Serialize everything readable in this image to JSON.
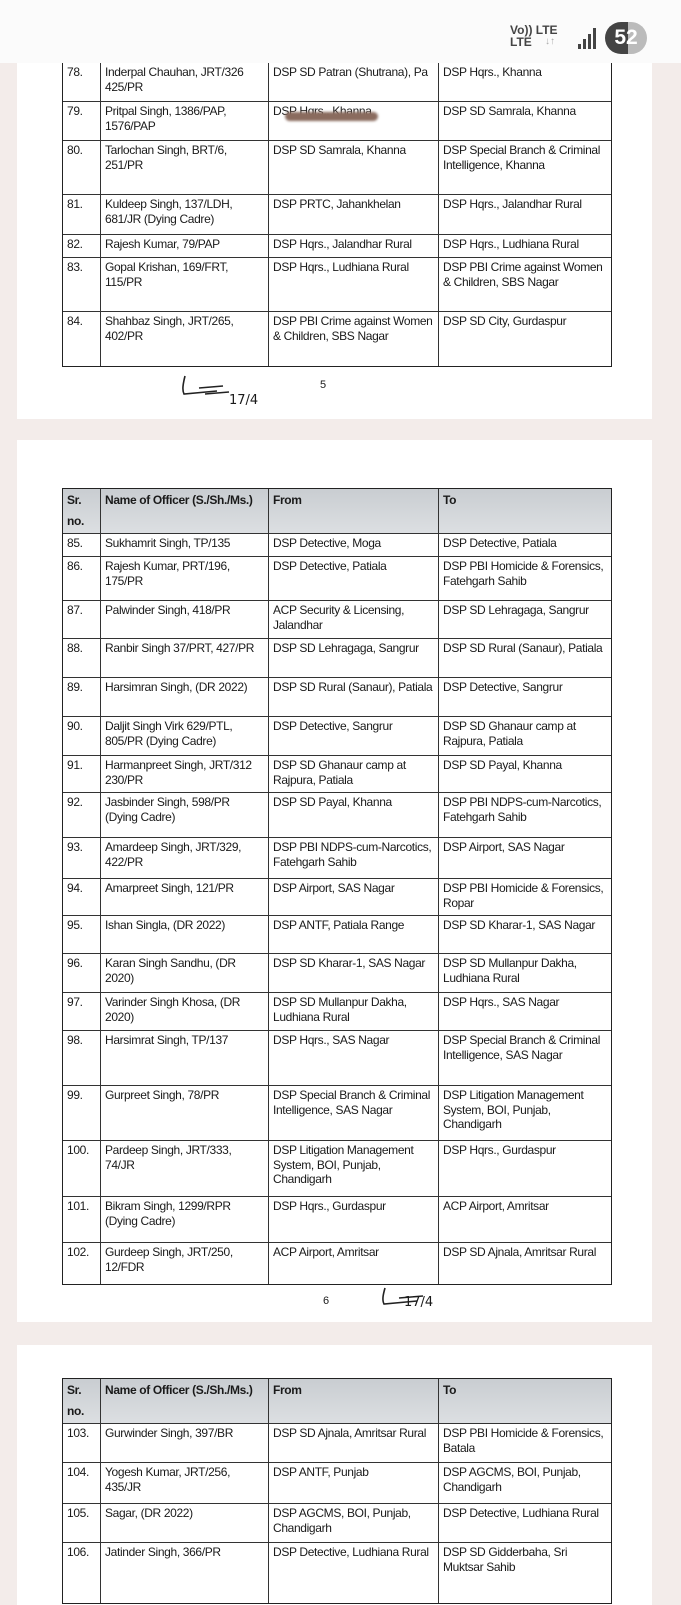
{
  "status_bar": {
    "network_top": "Vo)) LTE",
    "network_bottom": "LTE",
    "arrows": "↓↑",
    "battery": "52"
  },
  "header": {
    "sr": "Sr. no.",
    "name": "Name of Officer (S./Sh./Ms.)",
    "from": "From",
    "to": "To"
  },
  "pages": [
    {
      "page_number": "5",
      "signature_date": "17/4",
      "show_header": false,
      "rows": [
        {
          "sr": "78.",
          "name": "Inderpal Chauhan, JRT/326 425/PR",
          "from": "DSP SD Patran (Shutrana), Pa",
          "to": "DSP Hqrs., Khanna"
        },
        {
          "sr": "79.",
          "name": "Pritpal Singh, 1386/PAP, 1576/PAP",
          "from": "DSP Hqrs., Khanna",
          "to": "DSP SD Samrala, Khanna"
        },
        {
          "sr": "80.",
          "name": "Tarlochan Singh, BRT/6, 251/PR",
          "from": "DSP SD Samrala, Khanna",
          "to": "DSP Special Branch & Criminal Intelligence, Khanna"
        },
        {
          "sr": "81.",
          "name": "Kuldeep Singh, 137/LDH, 681/JR (Dying Cadre)",
          "from": "DSP PRTC, Jahankhelan",
          "to": "DSP Hqrs., Jalandhar Rural"
        },
        {
          "sr": "82.",
          "name": "Rajesh Kumar, 79/PAP",
          "from": "DSP Hqrs., Jalandhar Rural",
          "to": "DSP Hqrs., Ludhiana Rural"
        },
        {
          "sr": "83.",
          "name": "Gopal Krishan, 169/FRT, 115/PR",
          "from": "DSP Hqrs., Ludhiana Rural",
          "to": "DSP PBI Crime against Women & Children, SBS Nagar"
        },
        {
          "sr": "84.",
          "name": "Shahbaz Singh, JRT/265, 402/PR",
          "from": "DSP PBI Crime against Women & Children, SBS Nagar",
          "to": "DSP SD City, Gurdaspur"
        }
      ]
    },
    {
      "page_number": "6",
      "signature_date": "17/4",
      "show_header": true,
      "rows": [
        {
          "sr": "85.",
          "name": "Sukhamrit Singh, TP/135",
          "from": "DSP Detective, Moga",
          "to": "DSP Detective, Patiala"
        },
        {
          "sr": "86.",
          "name": "Rajesh Kumar, PRT/196, 175/PR",
          "from": "DSP Detective, Patiala",
          "to": "DSP PBI Homicide & Forensics, Fatehgarh Sahib"
        },
        {
          "sr": "87.",
          "name": "Palwinder Singh, 418/PR",
          "from": "ACP Security & Licensing, Jalandhar",
          "to": "DSP SD Lehragaga, Sangrur"
        },
        {
          "sr": "88.",
          "name": "Ranbir Singh 37/PRT, 427/PR",
          "from": "DSP SD Lehragaga, Sangrur",
          "to": "DSP SD Rural (Sanaur), Patiala"
        },
        {
          "sr": "89.",
          "name": "Harsimran Singh, (DR 2022)",
          "from": "DSP SD Rural (Sanaur), Patiala",
          "to": "DSP Detective, Sangrur"
        },
        {
          "sr": "90.",
          "name": "Daljit Singh Virk 629/PTL, 805/PR (Dying Cadre)",
          "from": "DSP Detective, Sangrur",
          "to": "DSP SD Ghanaur camp at Rajpura, Patiala"
        },
        {
          "sr": "91.",
          "name": "Harmanpreet Singh, JRT/312 230/PR",
          "from": "DSP SD Ghanaur camp at Rajpura, Patiala",
          "to": "DSP SD Payal, Khanna"
        },
        {
          "sr": "92.",
          "name": "Jasbinder Singh, 598/PR (Dying Cadre)",
          "from": "DSP SD Payal, Khanna",
          "to": "DSP PBI NDPS-cum-Narcotics, Fatehgarh Sahib"
        },
        {
          "sr": "93.",
          "name": "Amardeep Singh, JRT/329, 422/PR",
          "from": "DSP PBI NDPS-cum-Narcotics, Fatehgarh Sahib",
          "to": "DSP Airport, SAS Nagar"
        },
        {
          "sr": "94.",
          "name": "Amarpreet Singh, 121/PR",
          "from": "DSP Airport, SAS Nagar",
          "to": "DSP PBI Homicide & Forensics, Ropar"
        },
        {
          "sr": "95.",
          "name": "Ishan Singla, (DR 2022)",
          "from": "DSP ANTF, Patiala Range",
          "to": "DSP SD Kharar-1, SAS Nagar"
        },
        {
          "sr": "96.",
          "name": "Karan Singh Sandhu, (DR 2020)",
          "from": "DSP SD Kharar-1, SAS Nagar",
          "to": "DSP SD Mullanpur Dakha, Ludhiana Rural"
        },
        {
          "sr": "97.",
          "name": "Varinder Singh Khosa, (DR 2020)",
          "from": "DSP SD Mullanpur Dakha, Ludhiana Rural",
          "to": "DSP Hqrs., SAS Nagar"
        },
        {
          "sr": "98.",
          "name": "Harsimrat Singh, TP/137",
          "from": "DSP Hqrs., SAS Nagar",
          "to": "DSP Special Branch & Criminal Intelligence, SAS Nagar"
        },
        {
          "sr": "99.",
          "name": "Gurpreet Singh, 78/PR",
          "from": "DSP Special Branch & Criminal Intelligence, SAS Nagar",
          "to": "DSP Litigation Management System, BOI, Punjab, Chandigarh"
        },
        {
          "sr": "100.",
          "name": "Pardeep Singh, JRT/333, 74/JR",
          "from": "DSP Litigation Management System, BOI, Punjab, Chandigarh",
          "to": "DSP Hqrs., Gurdaspur"
        },
        {
          "sr": "101.",
          "name": "Bikram Singh, 1299/RPR (Dying Cadre)",
          "from": "DSP Hqrs., Gurdaspur",
          "to": "ACP Airport, Amritsar"
        },
        {
          "sr": "102.",
          "name": "Gurdeep Singh, JRT/250, 12/FDR",
          "from": "ACP Airport, Amritsar",
          "to": "DSP SD Ajnala, Amritsar Rural"
        }
      ]
    },
    {
      "show_header": true,
      "rows": [
        {
          "sr": "103.",
          "name": "Gurwinder Singh, 397/BR",
          "from": "DSP SD Ajnala, Amritsar Rural",
          "to": "DSP PBI Homicide & Forensics, Batala"
        },
        {
          "sr": "104.",
          "name": "Yogesh Kumar, JRT/256, 435/JR",
          "from": "DSP ANTF, Punjab",
          "to": "DSP AGCMS, BOI, Punjab, Chandigarh"
        },
        {
          "sr": "105.",
          "name": "Sagar, (DR 2022)",
          "from": "DSP AGCMS, BOI, Punjab, Chandigarh",
          "to": "DSP Detective, Ludhiana Rural"
        },
        {
          "sr": "106.",
          "name": "Jatinder Singh, 366/PR",
          "from": "DSP Detective, Ludhiana Rural",
          "to": "DSP SD Gidderbaha, Sri Muktsar Sahib"
        }
      ]
    }
  ]
}
